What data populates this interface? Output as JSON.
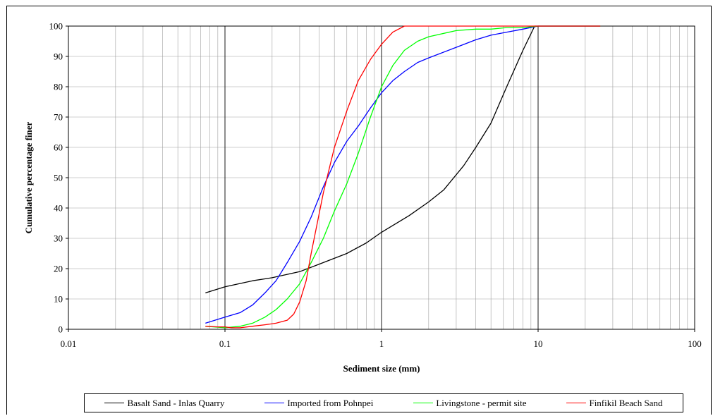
{
  "chart_data": {
    "type": "line",
    "title": "",
    "xlabel": "Sediment size (mm)",
    "ylabel": "Cumulative percentage finer",
    "x_scale": "log",
    "xlim": [
      0.01,
      100
    ],
    "ylim": [
      0,
      100
    ],
    "x_ticks": [
      "0.01",
      "0.1",
      "1",
      "10",
      "100"
    ],
    "y_ticks": [
      "0",
      "10",
      "20",
      "30",
      "40",
      "50",
      "60",
      "70",
      "80",
      "90",
      "100"
    ],
    "grid": true,
    "legend_position": "bottom",
    "series": [
      {
        "name": "Basalt Sand - Inlas Quarry",
        "color": "#000000",
        "points": [
          [
            0.075,
            12
          ],
          [
            0.1,
            14
          ],
          [
            0.15,
            16
          ],
          [
            0.2,
            17
          ],
          [
            0.3,
            19
          ],
          [
            0.4,
            21.5
          ],
          [
            0.6,
            25
          ],
          [
            0.8,
            28.5
          ],
          [
            1,
            32
          ],
          [
            1.5,
            37.5
          ],
          [
            2,
            42
          ],
          [
            2.5,
            46
          ],
          [
            3.35,
            54
          ],
          [
            4,
            60
          ],
          [
            5,
            68
          ],
          [
            6.3,
            80
          ],
          [
            8,
            92
          ],
          [
            9.5,
            100
          ],
          [
            25,
            100
          ]
        ]
      },
      {
        "name": "Imported from Pohnpei",
        "color": "#0000ff",
        "points": [
          [
            0.075,
            2
          ],
          [
            0.1,
            4
          ],
          [
            0.125,
            5.5
          ],
          [
            0.15,
            8
          ],
          [
            0.18,
            12
          ],
          [
            0.212,
            16
          ],
          [
            0.25,
            22
          ],
          [
            0.3,
            29
          ],
          [
            0.355,
            37
          ],
          [
            0.425,
            47
          ],
          [
            0.5,
            55
          ],
          [
            0.6,
            62
          ],
          [
            0.71,
            67
          ],
          [
            0.85,
            73
          ],
          [
            1,
            78
          ],
          [
            1.18,
            82
          ],
          [
            1.4,
            85
          ],
          [
            1.7,
            88
          ],
          [
            2,
            89.5
          ],
          [
            3,
            93
          ],
          [
            4,
            95.5
          ],
          [
            5,
            97
          ],
          [
            6.3,
            98
          ],
          [
            8,
            99
          ],
          [
            10,
            100
          ],
          [
            25,
            100
          ]
        ]
      },
      {
        "name": "Livingstone - permit site",
        "color": "#00ff00",
        "points": [
          [
            0.075,
            1
          ],
          [
            0.1,
            0.5
          ],
          [
            0.125,
            1
          ],
          [
            0.15,
            2
          ],
          [
            0.18,
            4
          ],
          [
            0.212,
            6.5
          ],
          [
            0.25,
            10
          ],
          [
            0.3,
            15
          ],
          [
            0.355,
            22
          ],
          [
            0.425,
            30
          ],
          [
            0.5,
            39
          ],
          [
            0.6,
            48
          ],
          [
            0.71,
            58
          ],
          [
            0.85,
            70
          ],
          [
            1,
            80
          ],
          [
            1.18,
            87
          ],
          [
            1.4,
            92
          ],
          [
            1.7,
            95
          ],
          [
            2,
            96.5
          ],
          [
            3,
            98.5
          ],
          [
            4,
            99
          ],
          [
            5,
            99
          ],
          [
            6.3,
            99.5
          ],
          [
            8,
            99.5
          ],
          [
            10,
            100
          ],
          [
            25,
            100
          ]
        ]
      },
      {
        "name": "Finfikil Beach Sand",
        "color": "#ff0000",
        "points": [
          [
            0.075,
            1
          ],
          [
            0.09,
            0.8
          ],
          [
            0.1,
            0.8
          ],
          [
            0.11,
            0.5
          ],
          [
            0.125,
            0.5
          ],
          [
            0.15,
            1
          ],
          [
            0.18,
            1.5
          ],
          [
            0.212,
            2
          ],
          [
            0.25,
            3
          ],
          [
            0.275,
            5
          ],
          [
            0.3,
            9
          ],
          [
            0.33,
            16
          ],
          [
            0.355,
            25
          ],
          [
            0.425,
            45
          ],
          [
            0.5,
            60
          ],
          [
            0.6,
            72
          ],
          [
            0.71,
            82
          ],
          [
            0.85,
            89
          ],
          [
            1,
            94
          ],
          [
            1.18,
            98
          ],
          [
            1.4,
            100
          ],
          [
            25,
            100
          ]
        ]
      }
    ]
  }
}
